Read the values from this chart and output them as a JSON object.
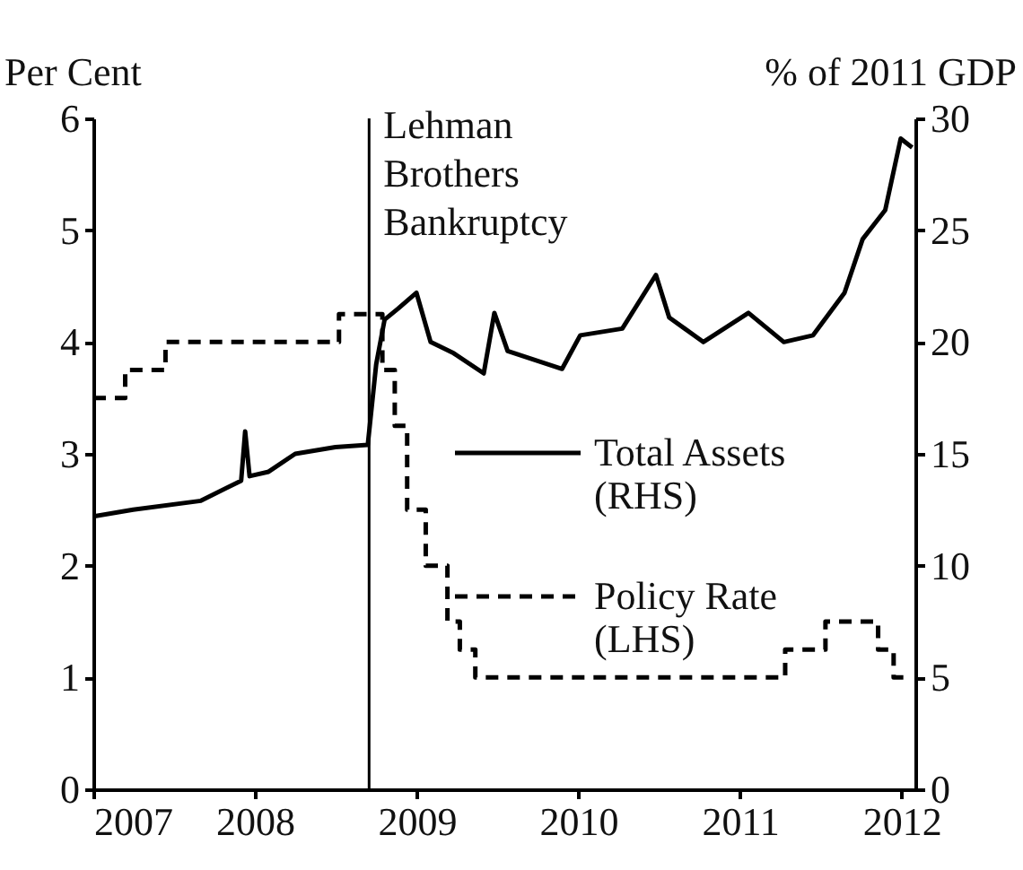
{
  "chart_data": {
    "type": "line",
    "ylabel": "Per Cent",
    "y2label": "% of 2011 GDP",
    "xlim": [
      "2007-01-01",
      "2012-02-01"
    ],
    "xticks": [
      "2007",
      "2008",
      "2009",
      "2010",
      "2011",
      "2012"
    ],
    "ylim": [
      0,
      6
    ],
    "yticks": [
      0,
      1,
      2,
      3,
      4,
      5,
      6
    ],
    "y2lim": [
      0,
      30
    ],
    "y2ticks": [
      0,
      5,
      10,
      15,
      20,
      25,
      30
    ],
    "grid": false,
    "legend": "right",
    "marker": "none",
    "ref_lines": [
      {
        "axis": "x",
        "value": "2008-09-15",
        "label": "Lehman Brothers Bankruptcy",
        "color": "#000000"
      }
    ],
    "series": [
      {
        "name": "Total Assets (RHS)",
        "color": "#000000",
        "axis": "y2",
        "line_style": "solid",
        "x": [
          "2007-01-01",
          "2007-04-01",
          "2007-09-01",
          "2007-12-01",
          "2007-12-10",
          "2007-12-20",
          "2008-02-01",
          "2008-04-01",
          "2008-07-01",
          "2008-09-12",
          "2008-10-01",
          "2008-10-20",
          "2008-11-20",
          "2008-12-31",
          "2009-02-01",
          "2009-03-25",
          "2009-06-01",
          "2009-06-25",
          "2009-07-25",
          "2009-11-25",
          "2010-01-05",
          "2010-04-10",
          "2010-06-25",
          "2010-07-25",
          "2010-10-10",
          "2011-01-20",
          "2011-04-10",
          "2011-06-15",
          "2011-08-25",
          "2011-10-05",
          "2011-11-25",
          "2011-12-30",
          "2012-01-25"
        ],
        "values": [
          12.2,
          12.5,
          12.9,
          13.8,
          16.0,
          14.0,
          14.2,
          15.0,
          15.3,
          15.4,
          19.0,
          21.0,
          21.5,
          22.2,
          20.0,
          19.5,
          18.6,
          21.3,
          19.6,
          18.8,
          20.3,
          20.6,
          23.0,
          21.1,
          20.0,
          21.3,
          20.0,
          20.3,
          22.2,
          24.6,
          25.9,
          29.1,
          28.7
        ]
      },
      {
        "name": "Policy Rate (LHS)",
        "color": "#000000",
        "type": "step",
        "line_style": "dashed",
        "x": [
          "2007-01-01",
          "2007-03-14",
          "2007-06-13",
          "2008-07-09",
          "2008-10-15",
          "2008-11-12",
          "2008-12-10",
          "2009-01-21",
          "2009-03-11",
          "2009-04-08",
          "2009-05-13",
          "2011-04-13",
          "2011-07-13",
          "2011-11-09",
          "2011-12-14",
          "2012-01-25"
        ],
        "values": [
          3.5,
          3.75,
          4.0,
          4.25,
          3.75,
          3.25,
          2.5,
          2.0,
          1.5,
          1.25,
          1.0,
          1.25,
          1.5,
          1.25,
          1.0,
          1.0
        ]
      }
    ]
  }
}
